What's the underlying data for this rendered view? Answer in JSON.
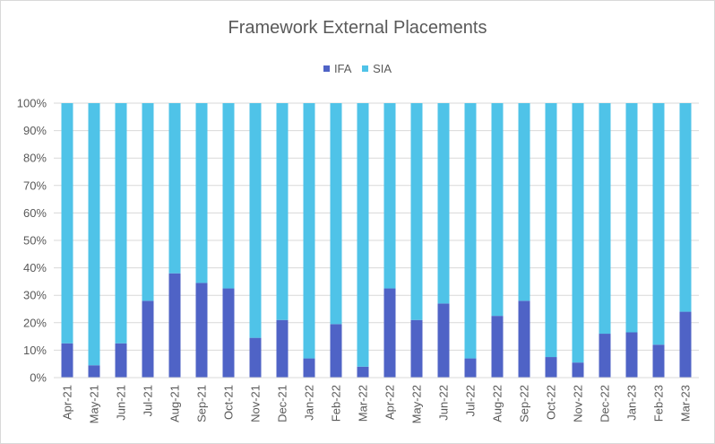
{
  "chart_data": {
    "type": "bar",
    "stacked": "percent",
    "title": "Framework External Placements",
    "categories": [
      "Apr-21",
      "May-21",
      "Jun-21",
      "Jul-21",
      "Aug-21",
      "Sep-21",
      "Oct-21",
      "Nov-21",
      "Dec-21",
      "Jan-22",
      "Feb-22",
      "Mar-22",
      "Apr-22",
      "May-22",
      "Jun-22",
      "Jul-22",
      "Aug-22",
      "Sep-22",
      "Oct-22",
      "Nov-22",
      "Dec-22",
      "Jan-23",
      "Feb-23",
      "Mar-23"
    ],
    "series": [
      {
        "name": "IFA",
        "color": "#4f63c6",
        "values": [
          12.5,
          4.5,
          12.5,
          28,
          38,
          34.5,
          32.5,
          14.5,
          21,
          7,
          19.5,
          4,
          32.5,
          21,
          27,
          7,
          22.5,
          28,
          7.5,
          5.5,
          16,
          16.5,
          12,
          24
        ]
      },
      {
        "name": "SIA",
        "color": "#4fc3e8",
        "values": [
          87.5,
          95.5,
          87.5,
          72,
          62,
          65.5,
          67.5,
          85.5,
          79,
          93,
          80.5,
          96,
          67.5,
          79,
          73,
          93,
          77.5,
          72,
          92.5,
          94.5,
          84,
          83.5,
          88,
          76
        ]
      }
    ],
    "y_ticks": [
      "0%",
      "10%",
      "20%",
      "30%",
      "40%",
      "50%",
      "60%",
      "70%",
      "80%",
      "90%",
      "100%"
    ],
    "ylim": [
      0,
      100
    ],
    "grid": true,
    "legend_position": "top"
  }
}
